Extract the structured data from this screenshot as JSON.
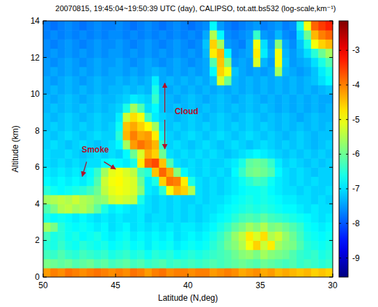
{
  "chart_data": {
    "type": "heatmap",
    "title": "20070815, 19:45:04~19:50:39 UTC (day), CALIPSO, tot.att.bs532 (log-scale,km⁻¹)",
    "x_label": "Latitude (N,deg)",
    "y_label": "Altitude (km)",
    "annotations": [
      "Smoke",
      "Cloud"
    ],
    "xlim": [
      50,
      30
    ],
    "xticks": [
      50,
      45,
      40,
      35,
      30
    ],
    "ylim": [
      0,
      14
    ],
    "yticks": [
      0,
      2,
      4,
      6,
      8,
      10,
      12,
      14
    ],
    "clim": [
      -9.55,
      -2.15
    ],
    "cticks": [
      -9,
      -8,
      -7,
      -6,
      -5,
      -4,
      -3
    ],
    "x": [
      49.75,
      49.25,
      48.75,
      48.25,
      47.75,
      47.25,
      46.75,
      46.25,
      45.75,
      45.25,
      44.75,
      44.25,
      43.75,
      43.25,
      42.75,
      42.25,
      41.75,
      41.25,
      40.75,
      40.25,
      39.75,
      39.25,
      38.75,
      38.25,
      37.75,
      37.25,
      36.75,
      36.25,
      35.75,
      35.25,
      34.75,
      34.25,
      33.75,
      33.25,
      32.75,
      32.25,
      31.75,
      31.25,
      30.75,
      30.25
    ],
    "y": [
      0.25,
      0.75,
      1.25,
      1.75,
      2.25,
      2.75,
      3.25,
      3.75,
      4.25,
      4.75,
      5.25,
      5.75,
      6.25,
      6.75,
      7.25,
      7.75,
      8.25,
      8.75,
      9.25,
      9.75,
      10.25,
      10.75,
      11.25,
      11.75,
      12.25,
      12.75,
      13.25,
      13.75
    ],
    "values": [
      [
        -4.2,
        -4.0,
        -4.1,
        -3.9,
        -4.0,
        -4.1,
        -4.0,
        -3.9,
        -4.0,
        -4.1,
        -4.0,
        -4.1,
        -3.9,
        -4.0,
        -4.2,
        -4.0,
        -3.9,
        -4.1,
        -4.0,
        -4.0,
        -4.1,
        -4.0,
        -4.0,
        -4.2,
        -4.1,
        -4.0,
        -4.1,
        -4.3,
        -4.2,
        -4.1,
        -4.3,
        -4.2,
        -4.4,
        -4.3,
        -4.4,
        -4.5,
        -4.4,
        -4.6,
        -4.5,
        -4.6
      ],
      [
        -5.9,
        -6.0,
        -6.1,
        -6.0,
        -6.2,
        -6.1,
        -6.0,
        -6.2,
        -6.1,
        -6.3,
        -6.2,
        -6.1,
        -6.3,
        -6.2,
        -6.4,
        -6.3,
        -6.2,
        -6.4,
        -6.3,
        -6.4,
        -6.3,
        -6.4,
        -6.3,
        -6.2,
        -6.3,
        -6.2,
        -6.1,
        -6.0,
        -6.1,
        -6.2,
        -6.0,
        -6.1,
        -6.2,
        -6.3,
        -6.2,
        -6.4,
        -6.3,
        -6.4,
        -6.5,
        -6.4
      ],
      [
        -6.3,
        -6.4,
        -6.2,
        -6.4,
        -6.5,
        -6.3,
        -6.4,
        -6.5,
        -6.4,
        -6.6,
        -6.5,
        -6.4,
        -6.6,
        -6.5,
        -6.7,
        -6.5,
        -6.6,
        -6.5,
        -6.7,
        -6.6,
        -6.5,
        -6.6,
        -6.5,
        -6.4,
        -6.3,
        -6.2,
        -6.0,
        -5.8,
        -5.7,
        -5.9,
        -5.6,
        -5.8,
        -5.9,
        -6.0,
        -6.2,
        -6.4,
        -6.5,
        -6.4,
        -6.6,
        -6.5
      ],
      [
        -6.5,
        -6.6,
        -6.4,
        -6.6,
        -6.7,
        -6.5,
        -6.6,
        -6.7,
        -6.6,
        -6.8,
        -6.7,
        -6.6,
        -6.8,
        -6.7,
        -6.9,
        -6.7,
        -6.8,
        -6.7,
        -6.9,
        -6.8,
        -6.7,
        -6.8,
        -6.7,
        -6.5,
        -6.3,
        -6.0,
        -5.8,
        -5.5,
        -5.0,
        -4.6,
        -5.3,
        -4.8,
        -5.6,
        -5.8,
        -5.9,
        -6.2,
        -6.5,
        -6.6,
        -6.7,
        -6.6
      ],
      [
        -6.3,
        -6.6,
        -6.5,
        -6.7,
        -6.6,
        -6.8,
        -6.7,
        -6.6,
        -6.8,
        -6.9,
        -6.8,
        -6.7,
        -6.9,
        -6.8,
        -6.9,
        -6.8,
        -6.9,
        -6.8,
        -7.0,
        -6.9,
        -6.8,
        -6.9,
        -6.8,
        -6.6,
        -6.4,
        -6.1,
        -5.7,
        -5.4,
        -4.8,
        -5.2,
        -4.7,
        -5.5,
        -5.3,
        -5.7,
        -6.0,
        -6.3,
        -6.6,
        -6.7,
        -6.8,
        -6.7
      ],
      [
        -5.6,
        -5.9,
        -6.5,
        -6.7,
        -6.8,
        -6.7,
        -6.8,
        -6.9,
        -6.8,
        -7.0,
        -6.9,
        -6.8,
        -7.0,
        -6.9,
        -7.0,
        -6.9,
        -7.0,
        -6.9,
        -7.0,
        -6.9,
        -6.9,
        -7.0,
        -6.9,
        -6.8,
        -6.6,
        -6.4,
        -6.1,
        -5.9,
        -5.6,
        -5.8,
        -5.5,
        -5.9,
        -5.8,
        -6.0,
        -6.2,
        -6.4,
        -6.7,
        -6.8,
        -6.9,
        -6.8
      ],
      [
        -6.6,
        -6.8,
        -6.7,
        -6.8,
        -6.9,
        -6.8,
        -6.9,
        -7.0,
        -6.9,
        -7.0,
        -6.9,
        -7.0,
        -7.0,
        -6.9,
        -7.1,
        -7.0,
        -7.0,
        -7.1,
        -7.0,
        -7.1,
        -7.0,
        -7.1,
        -7.0,
        -6.9,
        -6.8,
        -6.7,
        -6.5,
        -6.3,
        -6.2,
        -6.3,
        -6.1,
        -6.3,
        -6.4,
        -6.5,
        -6.6,
        -6.7,
        -6.8,
        -6.9,
        -7.0,
        -6.9
      ],
      [
        -6.2,
        -5.9,
        -5.5,
        -5.4,
        -5.6,
        -5.5,
        -5.7,
        -6.1,
        -6.6,
        -6.9,
        -6.8,
        -6.9,
        -7.0,
        -6.9,
        -7.0,
        -7.1,
        -7.0,
        -7.1,
        -7.0,
        -7.1,
        -7.0,
        -7.1,
        -7.0,
        -7.0,
        -6.9,
        -6.8,
        -6.7,
        -6.6,
        -6.5,
        -6.6,
        -6.5,
        -6.6,
        -6.7,
        -6.8,
        -6.8,
        -6.9,
        -7.0,
        -6.9,
        -7.0,
        -7.0
      ],
      [
        -5.6,
        -5.5,
        -5.4,
        -5.5,
        -5.3,
        -5.5,
        -5.6,
        -5.8,
        -5.7,
        -5.3,
        -5.2,
        -5.3,
        -5.4,
        -6.6,
        -7.0,
        -7.1,
        -7.0,
        -7.1,
        -7.0,
        -7.1,
        -7.1,
        -7.0,
        -7.1,
        -7.0,
        -7.0,
        -6.9,
        -6.8,
        -6.7,
        -6.6,
        -6.7,
        -6.6,
        -6.7,
        -6.8,
        -6.9,
        -6.9,
        -7.0,
        -7.0,
        -7.1,
        -7.0,
        -7.1
      ],
      [
        -6.5,
        -6.7,
        -6.8,
        -6.7,
        -6.6,
        -6.5,
        -6.3,
        -6.0,
        -5.4,
        -5.1,
        -5.0,
        -5.1,
        -5.2,
        -5.8,
        -6.9,
        -7.0,
        -6.5,
        -5.0,
        -4.4,
        -4.6,
        -5.5,
        -7.0,
        -7.1,
        -7.0,
        -7.1,
        -7.0,
        -6.9,
        -6.8,
        -6.7,
        -6.7,
        -6.6,
        -6.8,
        -6.9,
        -7.0,
        -7.0,
        -7.1,
        -7.0,
        -7.1,
        -7.1,
        -7.0
      ],
      [
        -6.8,
        -6.9,
        -6.8,
        -6.9,
        -6.8,
        -6.9,
        -6.7,
        -6.2,
        -5.3,
        -5.0,
        -4.9,
        -5.1,
        -5.2,
        -6.0,
        -6.9,
        -6.6,
        -4.6,
        -3.9,
        -4.0,
        -4.8,
        -6.6,
        -7.0,
        -7.1,
        -7.0,
        -7.1,
        -7.0,
        -6.9,
        -6.7,
        -6.5,
        -6.3,
        -6.4,
        -6.7,
        -6.9,
        -7.0,
        -7.1,
        -7.0,
        -7.1,
        -7.0,
        -7.1,
        -7.1
      ],
      [
        -6.9,
        -7.0,
        -6.9,
        -7.0,
        -6.9,
        -7.0,
        -6.8,
        -6.4,
        -5.6,
        -5.1,
        -5.0,
        -5.2,
        -5.4,
        -6.3,
        -6.5,
        -4.5,
        -3.8,
        -4.3,
        -5.8,
        -6.8,
        -7.0,
        -7.1,
        -7.0,
        -7.1,
        -7.0,
        -7.1,
        -6.8,
        -6.4,
        -6.0,
        -5.9,
        -6.0,
        -6.2,
        -6.8,
        -7.0,
        -7.1,
        -7.0,
        -7.1,
        -7.2,
        -7.1,
        -7.1
      ],
      [
        -7.0,
        -7.1,
        -7.0,
        -7.1,
        -7.0,
        -7.1,
        -7.0,
        -7.0,
        -6.8,
        -6.7,
        -6.8,
        -6.9,
        -6.6,
        -4.8,
        -3.8,
        -3.6,
        -4.5,
        -6.2,
        -7.0,
        -7.1,
        -7.0,
        -7.1,
        -7.0,
        -7.1,
        -7.1,
        -7.0,
        -6.9,
        -6.6,
        -6.1,
        -6.0,
        -6.1,
        -6.4,
        -6.9,
        -7.1,
        -7.0,
        -7.1,
        -7.2,
        -7.1,
        -7.2,
        -7.1
      ],
      [
        -7.0,
        -7.1,
        -7.1,
        -7.0,
        -7.1,
        -7.2,
        -7.1,
        -7.0,
        -7.1,
        -7.0,
        -7.1,
        -6.8,
        -6.0,
        -5.2,
        -4.3,
        -4.6,
        -6.0,
        -7.0,
        -7.1,
        -7.0,
        -7.1,
        -7.0,
        -7.1,
        -7.0,
        -7.1,
        -7.2,
        -7.1,
        -7.0,
        -6.9,
        -6.8,
        -6.9,
        -7.0,
        -7.1,
        -7.2,
        -7.1,
        -7.2,
        -7.1,
        -7.2,
        -7.1,
        -7.2
      ],
      [
        -7.1,
        -7.0,
        -7.1,
        -7.2,
        -7.1,
        -7.0,
        -7.1,
        -7.2,
        -7.1,
        -7.0,
        -6.8,
        -5.6,
        -4.2,
        -3.9,
        -4.1,
        -4.4,
        -6.4,
        -7.1,
        -7.0,
        -7.1,
        -7.2,
        -7.1,
        -7.0,
        -7.1,
        -7.2,
        -7.1,
        -7.0,
        -7.1,
        -7.2,
        -7.1,
        -7.0,
        -7.1,
        -7.2,
        -7.1,
        -7.2,
        -7.1,
        -7.2,
        -7.3,
        -7.2,
        -7.1
      ],
      [
        -7.1,
        -7.2,
        -7.1,
        -7.0,
        -7.1,
        -7.2,
        -7.1,
        -7.0,
        -7.1,
        -7.1,
        -6.5,
        -4.4,
        -4.0,
        -4.3,
        -4.2,
        -4.8,
        -6.8,
        -7.1,
        -7.2,
        -7.1,
        -7.0,
        -7.1,
        -7.2,
        -7.1,
        -7.0,
        -7.1,
        -7.2,
        -7.1,
        -7.0,
        -7.1,
        -7.2,
        -7.1,
        -7.2,
        -7.3,
        -7.2,
        -7.1,
        -7.2,
        -7.3,
        -7.2,
        -7.2
      ],
      [
        -7.2,
        -7.1,
        -7.2,
        -7.1,
        -7.2,
        -7.1,
        -7.2,
        -7.1,
        -7.2,
        -7.1,
        -6.7,
        -4.5,
        -4.3,
        -4.6,
        -4.9,
        -5.6,
        -7.0,
        -7.2,
        -7.1,
        -7.2,
        -7.1,
        -7.2,
        -7.1,
        -7.2,
        -7.1,
        -7.2,
        -7.1,
        -7.2,
        -7.1,
        -7.2,
        -7.1,
        -7.2,
        -7.3,
        -7.2,
        -7.3,
        -7.2,
        -7.3,
        -7.2,
        -7.3,
        -7.2
      ],
      [
        -7.2,
        -7.3,
        -7.2,
        -7.1,
        -7.2,
        -7.3,
        -7.2,
        -7.1,
        -7.2,
        -7.2,
        -6.9,
        -5.3,
        -4.7,
        -5.0,
        -6.3,
        -6.9,
        -7.1,
        -7.2,
        -7.3,
        -7.2,
        -7.1,
        -7.2,
        -7.3,
        -7.2,
        -7.1,
        -7.2,
        -7.3,
        -7.2,
        -7.1,
        -7.2,
        -7.3,
        -7.2,
        -7.3,
        -7.2,
        -7.3,
        -7.4,
        -7.3,
        -7.2,
        -7.3,
        -7.3
      ],
      [
        -7.3,
        -7.2,
        -7.3,
        -7.2,
        -7.3,
        -7.2,
        -7.3,
        -7.2,
        -7.3,
        -7.2,
        -7.1,
        -6.6,
        -5.6,
        -6.2,
        -7.0,
        -6.8,
        -7.2,
        -7.3,
        -7.2,
        -7.3,
        -7.2,
        -7.3,
        -7.2,
        -7.3,
        -7.2,
        -7.3,
        -7.2,
        -7.3,
        -7.2,
        -7.3,
        -7.2,
        -7.3,
        -7.4,
        -7.3,
        -7.4,
        -7.3,
        -7.4,
        -7.3,
        -7.4,
        -7.3
      ],
      [
        -7.3,
        -7.4,
        -7.3,
        -7.2,
        -7.3,
        -7.4,
        -7.3,
        -7.2,
        -7.3,
        -7.3,
        -7.2,
        -7.1,
        -6.9,
        -7.0,
        -7.1,
        -6.4,
        -7.2,
        -7.3,
        -7.4,
        -7.3,
        -7.2,
        -7.3,
        -7.4,
        -7.3,
        -7.2,
        -7.3,
        -7.4,
        -7.3,
        -7.2,
        -7.3,
        -7.4,
        -7.3,
        -7.4,
        -7.3,
        -7.4,
        -7.3,
        -7.4,
        -7.3,
        -7.4,
        -7.4
      ],
      [
        -7.4,
        -7.3,
        -7.4,
        -7.3,
        -7.4,
        -7.3,
        -7.4,
        -7.3,
        -7.4,
        -7.3,
        -7.3,
        -7.2,
        -7.3,
        -7.2,
        -7.3,
        -6.6,
        -7.3,
        -7.4,
        -7.3,
        -7.4,
        -7.3,
        -7.4,
        -7.3,
        -7.4,
        -7.3,
        -7.4,
        -7.3,
        -7.4,
        -7.3,
        -7.4,
        -7.3,
        -7.4,
        -7.3,
        -7.4,
        -7.3,
        -7.4,
        -7.3,
        -7.4,
        -7.3,
        -7.2
      ],
      [
        -7.4,
        -7.5,
        -7.4,
        -7.3,
        -7.4,
        -7.5,
        -7.4,
        -7.3,
        -7.4,
        -7.4,
        -7.3,
        -7.4,
        -7.3,
        -7.4,
        -7.3,
        -6.9,
        -7.4,
        -7.3,
        -7.4,
        -7.3,
        -7.4,
        -7.3,
        -7.4,
        -7.2,
        -5.2,
        -6.0,
        -7.3,
        -7.4,
        -7.3,
        -7.4,
        -7.3,
        -7.4,
        -7.3,
        -7.4,
        -7.3,
        -7.4,
        -7.3,
        -7.2,
        -7.0,
        -6.8
      ],
      [
        -7.5,
        -7.4,
        -7.5,
        -7.4,
        -7.5,
        -7.4,
        -7.5,
        -7.4,
        -7.5,
        -7.4,
        -7.4,
        -7.5,
        -7.4,
        -7.5,
        -7.4,
        -7.3,
        -7.4,
        -7.5,
        -7.4,
        -7.5,
        -7.4,
        -7.5,
        -7.4,
        -6.8,
        -4.6,
        -5.0,
        -7.2,
        -7.4,
        -7.5,
        -7.4,
        -7.5,
        -7.4,
        -5.6,
        -7.3,
        -7.4,
        -7.5,
        -7.4,
        -7.2,
        -6.9,
        -6.6
      ],
      [
        -7.5,
        -7.6,
        -7.5,
        -7.4,
        -7.5,
        -7.6,
        -7.5,
        -7.4,
        -7.5,
        -7.5,
        -7.4,
        -7.5,
        -7.6,
        -7.5,
        -7.4,
        -7.5,
        -7.6,
        -7.5,
        -7.4,
        -7.5,
        -7.6,
        -7.5,
        -7.4,
        -6.2,
        -4.5,
        -5.8,
        -7.5,
        -7.4,
        -7.5,
        -5.2,
        -7.3,
        -7.5,
        -5.0,
        -7.2,
        -7.5,
        -7.4,
        -7.3,
        -7.0,
        -6.6,
        -6.2
      ],
      [
        -7.6,
        -7.5,
        -7.6,
        -7.5,
        -7.6,
        -7.5,
        -7.6,
        -7.5,
        -7.6,
        -7.5,
        -7.5,
        -7.6,
        -7.5,
        -7.6,
        -7.5,
        -7.6,
        -7.5,
        -7.6,
        -7.5,
        -7.6,
        -7.5,
        -7.6,
        -7.3,
        -4.8,
        -4.4,
        -6.8,
        -7.6,
        -7.5,
        -7.4,
        -4.8,
        -6.9,
        -7.4,
        -5.0,
        -7.3,
        -7.5,
        -7.3,
        -7.0,
        -6.5,
        -6.0,
        -5.6
      ],
      [
        -7.6,
        -7.7,
        -7.6,
        -7.5,
        -7.6,
        -7.7,
        -7.6,
        -7.5,
        -7.6,
        -7.6,
        -7.5,
        -7.6,
        -7.7,
        -7.6,
        -7.5,
        -7.6,
        -7.7,
        -7.6,
        -7.5,
        -7.6,
        -7.7,
        -7.6,
        -7.2,
        -4.6,
        -5.6,
        -7.5,
        -7.6,
        -7.7,
        -7.4,
        -5.0,
        -7.0,
        -7.5,
        -5.8,
        -7.4,
        -7.6,
        -7.2,
        -6.6,
        -5.0,
        -4.6,
        -4.4
      ],
      [
        -7.7,
        -7.6,
        -7.7,
        -7.6,
        -7.7,
        -7.6,
        -7.7,
        -7.6,
        -7.7,
        -7.6,
        -7.6,
        -7.7,
        -7.6,
        -7.7,
        -7.6,
        -7.7,
        -7.6,
        -7.7,
        -7.6,
        -7.7,
        -7.6,
        -7.7,
        -7.4,
        -5.5,
        -6.8,
        -7.6,
        -7.7,
        -7.6,
        -7.5,
        -6.4,
        -7.5,
        -7.6,
        -7.3,
        -7.6,
        -7.7,
        -7.0,
        -6.0,
        -4.4,
        -4.0,
        -3.8
      ],
      [
        -7.7,
        -7.8,
        -7.7,
        -7.6,
        -7.7,
        -7.8,
        -7.7,
        -7.6,
        -7.7,
        -7.7,
        -7.6,
        -7.7,
        -7.8,
        -7.7,
        -7.6,
        -7.7,
        -7.8,
        -7.7,
        -7.6,
        -7.7,
        -7.8,
        -7.7,
        -7.6,
        -6.8,
        -7.5,
        -7.7,
        -7.8,
        -7.7,
        -7.6,
        -7.5,
        -7.7,
        -7.6,
        -7.5,
        -7.7,
        -7.6,
        -6.6,
        -5.0,
        -3.8,
        -3.5,
        -3.3
      ]
    ]
  }
}
